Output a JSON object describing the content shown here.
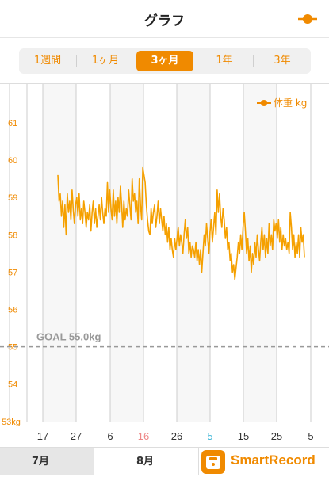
{
  "header": {
    "title": "グラフ",
    "legend_icon": "orange-line-dot-icon"
  },
  "range_tabs": [
    {
      "label": "1週間",
      "active": false
    },
    {
      "label": "1ヶ月",
      "active": false
    },
    {
      "label": "3ヶ月",
      "active": true
    },
    {
      "label": "1年",
      "active": false
    },
    {
      "label": "3年",
      "active": false
    }
  ],
  "colors": {
    "accent": "#f08a00",
    "series": "#f5a000",
    "goal": "#999999",
    "grid": "#cccccc",
    "xlabel_blue": "#39b4d6",
    "xlabel_red": "#e88",
    "bg_stripe": "#ececec"
  },
  "footer": {
    "months": [
      "7月",
      "8月"
    ],
    "brand": "SmartRecord",
    "brand_icon": "smartrecord-scale-icon"
  },
  "chart_data": {
    "type": "line",
    "legend": {
      "label": "体重 kg",
      "placement": "top-right"
    },
    "ylim": [
      53,
      62
    ],
    "yticks": [
      "53kg",
      "54",
      "55",
      "56",
      "57",
      "58",
      "59",
      "60",
      "61"
    ],
    "ytick_values": [
      53,
      54,
      55,
      56,
      57,
      58,
      59,
      60,
      61
    ],
    "goal": {
      "label": "GOAL 55.0kg",
      "value": 55.0
    },
    "xticks": [
      {
        "label": "17",
        "color": "normal"
      },
      {
        "label": "27",
        "color": "normal"
      },
      {
        "label": "6",
        "color": "normal"
      },
      {
        "label": "16",
        "color": "red"
      },
      {
        "label": "26",
        "color": "normal"
      },
      {
        "label": "5",
        "color": "blue"
      },
      {
        "label": "15",
        "color": "normal"
      },
      {
        "label": "25",
        "color": "normal"
      },
      {
        "label": "5",
        "color": "normal"
      }
    ],
    "grid": true,
    "series": [
      {
        "values": [
          59.6,
          58.9,
          59.1,
          58.5,
          58.9,
          58.2,
          58.8,
          58.0,
          59.1,
          58.6,
          58.9,
          58.4,
          59.2,
          58.7,
          58.3,
          58.8,
          59.0,
          58.5,
          59.1,
          58.4,
          58.7,
          58.3,
          58.9,
          58.6,
          58.2,
          58.6,
          58.4,
          58.8,
          58.1,
          58.6,
          58.9,
          58.3,
          58.7,
          58.2,
          58.5,
          58.8,
          58.4,
          59.0,
          58.6,
          58.3,
          58.7,
          58.5,
          59.4,
          58.6,
          59.2,
          58.7,
          58.4,
          59.2,
          58.5,
          58.9,
          58.3,
          59.0,
          58.6,
          59.3,
          58.8,
          58.2,
          58.9,
          58.4,
          58.7,
          58.5,
          59.2,
          58.8,
          58.4,
          59.5,
          58.9,
          59.1,
          58.6,
          58.9,
          58.3,
          59.5,
          58.8,
          58.4,
          59.8,
          59.6,
          59.4,
          58.8,
          58.4,
          58.1,
          58.0,
          58.7,
          58.3,
          58.6,
          58.8,
          58.2,
          58.5,
          58.9,
          58.3,
          58.7,
          58.4,
          58.1,
          58.5,
          58.0,
          58.3,
          57.8,
          58.2,
          57.6,
          57.9,
          57.6,
          57.4,
          57.9,
          57.6,
          57.9,
          58.2,
          57.7,
          58.0,
          57.8,
          57.5,
          58.0,
          58.4,
          57.9,
          58.2,
          57.5,
          57.8,
          57.4,
          57.7,
          57.6,
          57.4,
          57.8,
          57.3,
          57.6,
          57.2,
          57.6,
          57.0,
          57.5,
          58.0,
          57.7,
          58.3,
          57.9,
          57.5,
          58.1,
          58.4,
          57.8,
          58.2,
          58.6,
          58.0,
          59.2,
          58.6,
          59.1,
          58.5,
          58.2,
          58.7,
          58.4,
          57.9,
          58.2,
          57.6,
          57.8,
          57.3,
          57.5,
          57.0,
          57.2,
          56.8,
          57.1,
          57.4,
          57.8,
          57.5,
          58.0,
          57.6,
          58.2,
          58.6,
          58.1,
          57.5,
          57.9,
          57.3,
          57.7,
          57.0,
          57.5,
          57.2,
          57.8,
          57.4,
          58.0,
          57.6,
          57.3,
          57.8,
          58.2,
          57.6,
          58.0,
          57.4,
          57.9,
          57.5,
          58.3,
          57.7,
          58.0,
          57.6,
          58.4,
          58.1,
          58.3,
          57.9,
          58.4,
          57.8,
          58.2,
          57.6,
          58.0,
          57.7,
          57.9,
          57.6,
          57.8,
          57.5,
          58.6,
          58.2,
          57.6,
          58.0,
          57.4,
          57.8,
          57.5,
          58.0,
          57.4,
          58.2,
          57.8,
          58.0,
          57.4
        ]
      }
    ]
  }
}
